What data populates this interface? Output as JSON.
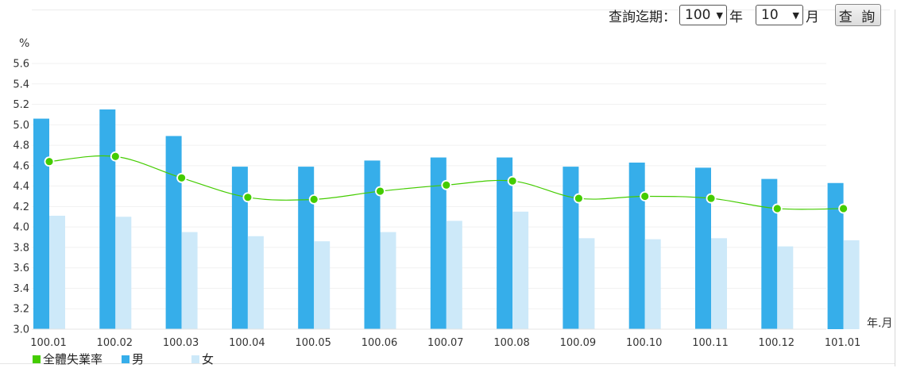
{
  "query": {
    "label": "查詢迄期：",
    "year_value": "100",
    "year_unit": "年",
    "month_value": "10",
    "month_unit": "月",
    "button_label": "查 詢"
  },
  "colors": {
    "total": "#44cc00",
    "male": "#36aeea",
    "female": "#cde9f9"
  },
  "chart_data": {
    "type": "bar",
    "ylabel": "%",
    "xlabel": "年.月",
    "ylim": [
      3.0,
      5.6
    ],
    "yticks": [
      "3.0",
      "3.2",
      "3.4",
      "3.6",
      "3.8",
      "4.0",
      "4.2",
      "4.4",
      "4.6",
      "4.8",
      "5.0",
      "5.2",
      "5.4",
      "5.6"
    ],
    "grid": true,
    "legend_position": "bottom-left",
    "categories": [
      "100.01",
      "100.02",
      "100.03",
      "100.04",
      "100.05",
      "100.06",
      "100.07",
      "100.08",
      "100.09",
      "100.10",
      "100.11",
      "100.12",
      "101.01"
    ],
    "series": [
      {
        "name": "全體失業率",
        "kind": "line",
        "values": [
          4.64,
          4.69,
          4.48,
          4.29,
          4.27,
          4.35,
          4.41,
          4.45,
          4.28,
          4.3,
          4.28,
          4.18,
          4.18
        ]
      },
      {
        "name": "男",
        "kind": "bar",
        "values": [
          5.06,
          5.15,
          4.89,
          4.59,
          4.59,
          4.65,
          4.68,
          4.68,
          4.59,
          4.63,
          4.58,
          4.47,
          4.43
        ]
      },
      {
        "name": "女",
        "kind": "bar",
        "values": [
          4.11,
          4.1,
          3.95,
          3.91,
          3.86,
          3.95,
          4.06,
          4.15,
          3.89,
          3.88,
          3.89,
          3.81,
          3.87
        ]
      }
    ]
  }
}
